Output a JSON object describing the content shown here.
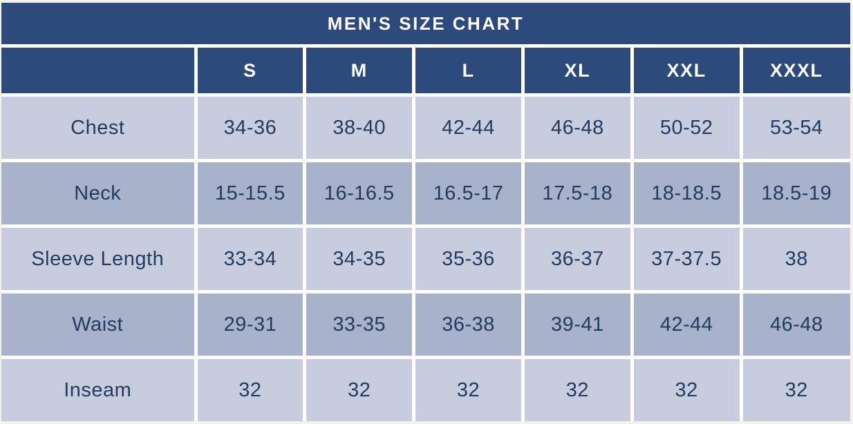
{
  "chart_data": {
    "type": "table",
    "title": "MEN'S SIZE CHART",
    "columns": [
      "S",
      "M",
      "L",
      "XL",
      "XXL",
      "XXXL"
    ],
    "rows": [
      {
        "label": "Chest",
        "values": [
          "34-36",
          "38-40",
          "42-44",
          "46-48",
          "50-52",
          "53-54"
        ]
      },
      {
        "label": "Neck",
        "values": [
          "15-15.5",
          "16-16.5",
          "16.5-17",
          "17.5-18",
          "18-18.5",
          "18.5-19"
        ]
      },
      {
        "label": "Sleeve Length",
        "values": [
          "33-34",
          "34-35",
          "35-36",
          "36-37",
          "37-37.5",
          "38"
        ]
      },
      {
        "label": "Waist",
        "values": [
          "29-31",
          "33-35",
          "36-38",
          "39-41",
          "42-44",
          "46-48"
        ]
      },
      {
        "label": "Inseam",
        "values": [
          "32",
          "32",
          "32",
          "32",
          "32",
          "32"
        ]
      }
    ],
    "layout": {
      "legend": "none",
      "grid": "white gridlines between cells",
      "row_striping": [
        "light",
        "dark",
        "light",
        "dark",
        "light"
      ]
    },
    "colors": {
      "header_bg": "#2c4a7b",
      "header_text": "#ffffff",
      "row_light_bg": "#c7cdde",
      "row_dark_bg": "#a9b2cb",
      "cell_text": "#223c60",
      "gridline": "#ffffff",
      "page_bg": "#f5f2eb"
    }
  }
}
